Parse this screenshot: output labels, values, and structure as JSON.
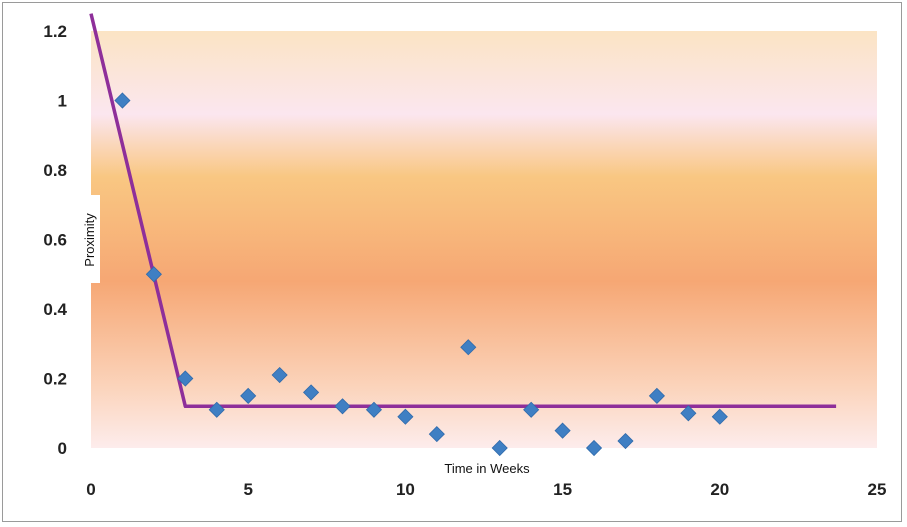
{
  "chart_data": {
    "type": "scatter",
    "title": "",
    "xlabel": "Time in Weeks",
    "ylabel": "Proximity",
    "xlim": [
      0,
      25
    ],
    "ylim": [
      0,
      1.2
    ],
    "x_ticks": [
      "0",
      "5",
      "10",
      "15",
      "20",
      "25"
    ],
    "y_ticks": [
      "0",
      "0.2",
      "0.4",
      "0.6",
      "0.8",
      "1",
      "1.2"
    ],
    "grid": false,
    "legend": "none",
    "series": [
      {
        "type": "scatter",
        "marker": "diamond",
        "color": "#3f7fc3",
        "points": [
          [
            1,
            1.0
          ],
          [
            2,
            0.5
          ],
          [
            3,
            0.2
          ],
          [
            4,
            0.11
          ],
          [
            5,
            0.15
          ],
          [
            6,
            0.21
          ],
          [
            7,
            0.16
          ],
          [
            8,
            0.12
          ],
          [
            9,
            0.11
          ],
          [
            10,
            0.09
          ],
          [
            11,
            0.04
          ],
          [
            12,
            0.29
          ],
          [
            13,
            0.0
          ],
          [
            14,
            0.11
          ],
          [
            15,
            0.05
          ],
          [
            16,
            0.0
          ],
          [
            17,
            0.02
          ],
          [
            18,
            0.15
          ],
          [
            19,
            0.1
          ],
          [
            20,
            0.09
          ]
        ]
      },
      {
        "type": "line",
        "color": "#8e2f9a",
        "points": [
          [
            0,
            1.25
          ],
          [
            3,
            0.12
          ],
          [
            23.7,
            0.12
          ]
        ]
      }
    ]
  }
}
